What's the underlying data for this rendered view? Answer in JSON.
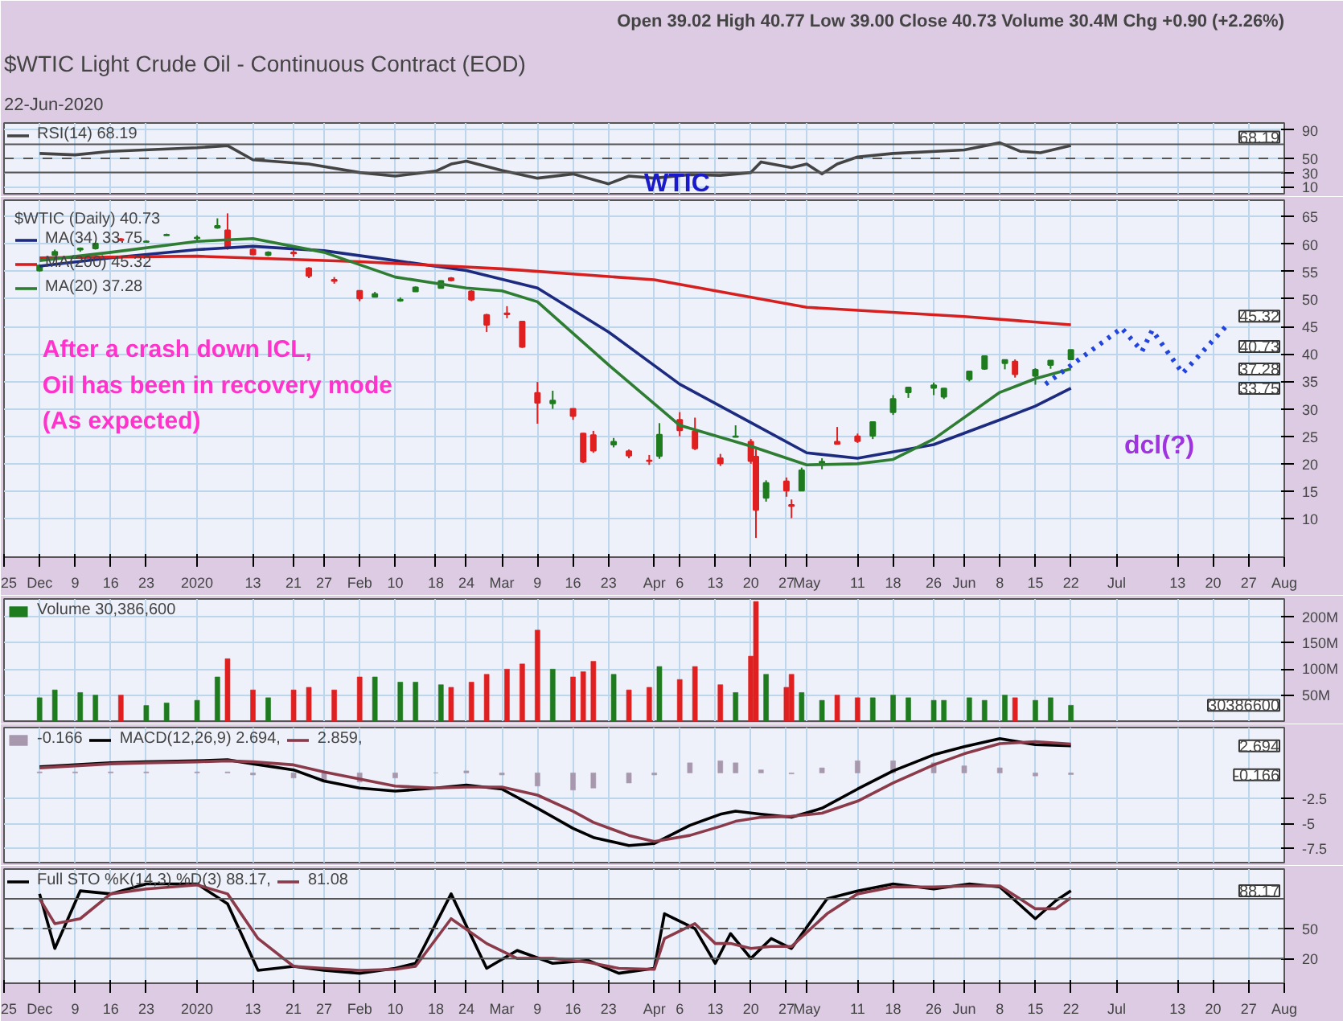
{
  "chart_data": [
    {
      "type": "line",
      "title": "$WTIC Light Crude Oil - Continuous Contract (EOD)",
      "subtitle": "22-Jun-2020",
      "annotations": [
        "Open 39.02 High 40.77 Low 39.00 Close 40.73 Volume 30.4M Chg +0.90 (+2.26%)",
        "WTIC",
        "68.19"
      ],
      "xlim": [
        "2019-11-25",
        "2020-08-03"
      ],
      "ylim": [
        0,
        100
      ],
      "yticks": [
        10,
        30,
        50,
        90
      ],
      "tick_labels": "y",
      "grid": true,
      "legend": "top left",
      "ref_lines": [
        {
          "axis": "y",
          "value": 70
        },
        {
          "axis": "y",
          "value": 50,
          "line_style": "dashed"
        },
        {
          "axis": "y",
          "value": 30
        }
      ],
      "series": [
        {
          "name": "RSI(14) 68.19",
          "color": "#444444",
          "x": [
            "2019-12-02",
            "2019-12-09",
            "2019-12-16",
            "2020-01-02",
            "2020-01-08",
            "2020-01-13",
            "2020-01-24",
            "2020-02-03",
            "2020-02-10",
            "2020-02-18",
            "2020-02-21",
            "2020-02-24",
            "2020-03-02",
            "2020-03-09",
            "2020-03-16",
            "2020-03-23",
            "2020-03-27",
            "2020-04-01",
            "2020-04-08",
            "2020-04-14",
            "2020-04-20",
            "2020-04-22",
            "2020-04-28",
            "2020-05-01",
            "2020-05-04",
            "2020-05-07",
            "2020-05-11",
            "2020-05-18",
            "2020-06-01",
            "2020-06-08",
            "2020-06-12",
            "2020-06-16",
            "2020-06-22"
          ],
          "values": [
            57,
            55,
            60,
            65,
            68,
            48,
            42,
            30,
            25,
            32,
            42,
            46,
            33,
            22,
            28,
            14,
            25,
            22,
            27,
            26,
            30,
            45,
            37,
            42,
            28,
            42,
            52,
            57,
            62,
            72,
            60,
            58,
            68.19
          ]
        }
      ]
    },
    {
      "type": "candlestick",
      "legend_title": "$WTIC (Daily) 40.73",
      "legend": "top left",
      "grid": true,
      "annotations": [
        "After a crash down ICL,",
        "Oil has been in recovery mode",
        "(As expected)",
        "dcl(?)",
        "45.32",
        "40.73",
        "37.28",
        "33.75"
      ],
      "xlim": [
        "2019-11-25",
        "2020-08-03"
      ],
      "xticks": [
        {
          "value": "2019-11-25",
          "label": "25"
        },
        {
          "value": "2019-12-02",
          "label": "Dec"
        },
        {
          "value": "2019-12-09",
          "label": "9"
        },
        {
          "value": "2019-12-16",
          "label": "16"
        },
        {
          "value": "2019-12-23",
          "label": "23"
        },
        {
          "value": "2020-01-02",
          "label": "2020"
        },
        {
          "value": "2020-01-13",
          "label": "13"
        },
        {
          "value": "2020-01-21",
          "label": "21"
        },
        {
          "value": "2020-01-27",
          "label": "27"
        },
        {
          "value": "2020-02-03",
          "label": "Feb"
        },
        {
          "value": "2020-02-10",
          "label": "10"
        },
        {
          "value": "2020-02-18",
          "label": "18"
        },
        {
          "value": "2020-02-24",
          "label": "24"
        },
        {
          "value": "2020-03-02",
          "label": "Mar"
        },
        {
          "value": "2020-03-09",
          "label": "9"
        },
        {
          "value": "2020-03-16",
          "label": "16"
        },
        {
          "value": "2020-03-23",
          "label": "23"
        },
        {
          "value": "2020-04-01",
          "label": "Apr"
        },
        {
          "value": "2020-04-06",
          "label": "6"
        },
        {
          "value": "2020-04-13",
          "label": "13"
        },
        {
          "value": "2020-04-20",
          "label": "20"
        },
        {
          "value": "2020-04-27",
          "label": "27"
        },
        {
          "value": "2020-05-01",
          "label": "May"
        },
        {
          "value": "2020-05-11",
          "label": "11"
        },
        {
          "value": "2020-05-18",
          "label": "18"
        },
        {
          "value": "2020-05-26",
          "label": "26"
        },
        {
          "value": "2020-06-01",
          "label": "Jun"
        },
        {
          "value": "2020-06-08",
          "label": "8"
        },
        {
          "value": "2020-06-15",
          "label": "15"
        },
        {
          "value": "2020-06-22",
          "label": "22"
        },
        {
          "value": "2020-07-01",
          "label": "Jul"
        },
        {
          "value": "2020-07-13",
          "label": "13"
        },
        {
          "value": "2020-07-20",
          "label": "20"
        },
        {
          "value": "2020-07-27",
          "label": "27"
        },
        {
          "value": "2020-08-03",
          "label": "Aug"
        }
      ],
      "ylim": [
        3,
        68
      ],
      "yticks": [
        10,
        15,
        20,
        25,
        30,
        35,
        40,
        45,
        50,
        55,
        60,
        65
      ],
      "x": [
        "2019-12-02",
        "2019-12-05",
        "2019-12-10",
        "2019-12-13",
        "2019-12-18",
        "2019-12-23",
        "2019-12-27",
        "2020-01-02",
        "2020-01-06",
        "2020-01-08",
        "2020-01-13",
        "2020-01-16",
        "2020-01-21",
        "2020-01-24",
        "2020-01-29",
        "2020-02-03",
        "2020-02-06",
        "2020-02-11",
        "2020-02-14",
        "2020-02-19",
        "2020-02-21",
        "2020-02-25",
        "2020-02-28",
        "2020-03-03",
        "2020-03-06",
        "2020-03-09",
        "2020-03-12",
        "2020-03-16",
        "2020-03-18",
        "2020-03-20",
        "2020-03-24",
        "2020-03-27",
        "2020-03-31",
        "2020-04-02",
        "2020-04-06",
        "2020-04-09",
        "2020-04-14",
        "2020-04-17",
        "2020-04-20",
        "2020-04-21",
        "2020-04-23",
        "2020-04-27",
        "2020-04-28",
        "2020-04-30",
        "2020-05-04",
        "2020-05-07",
        "2020-05-11",
        "2020-05-14",
        "2020-05-18",
        "2020-05-21",
        "2020-05-26",
        "2020-05-28",
        "2020-06-02",
        "2020-06-05",
        "2020-06-09",
        "2020-06-11",
        "2020-06-15",
        "2020-06-18",
        "2020-06-22"
      ],
      "ohlc": [
        [
          55.2,
          56.3,
          55.0,
          56.1
        ],
        [
          58.0,
          59.0,
          58.0,
          58.6
        ],
        [
          59.0,
          59.4,
          58.6,
          59.2
        ],
        [
          59.2,
          60.2,
          59.0,
          60.1
        ],
        [
          60.9,
          61.1,
          60.5,
          60.7
        ],
        [
          60.4,
          60.7,
          60.3,
          60.5
        ],
        [
          61.6,
          61.9,
          61.5,
          61.7
        ],
        [
          61.1,
          61.6,
          60.6,
          61.2
        ],
        [
          63.0,
          64.7,
          62.8,
          63.3
        ],
        [
          62.5,
          65.6,
          59.0,
          59.6
        ],
        [
          59.0,
          59.2,
          58.0,
          58.1
        ],
        [
          58.0,
          58.7,
          57.8,
          58.5
        ],
        [
          58.5,
          59.7,
          57.7,
          58.3
        ],
        [
          55.6,
          55.8,
          53.8,
          54.2
        ],
        [
          53.5,
          54.0,
          52.8,
          53.3
        ],
        [
          51.5,
          51.6,
          49.6,
          50.1
        ],
        [
          50.4,
          51.3,
          50.3,
          50.9
        ],
        [
          49.7,
          50.3,
          49.5,
          49.9
        ],
        [
          51.4,
          52.3,
          51.3,
          52.1
        ],
        [
          52.0,
          53.4,
          52.0,
          53.3
        ],
        [
          53.8,
          54.0,
          53.2,
          53.4
        ],
        [
          51.4,
          51.6,
          49.6,
          49.9
        ],
        [
          47.1,
          47.3,
          44.0,
          45.3
        ],
        [
          47.4,
          48.7,
          46.5,
          47.2
        ],
        [
          45.9,
          46.0,
          41.1,
          41.3
        ],
        [
          32.9,
          34.9,
          27.3,
          31.1
        ],
        [
          31.0,
          33.3,
          30.0,
          31.5
        ],
        [
          30.0,
          30.0,
          28.0,
          28.7
        ],
        [
          25.5,
          25.6,
          20.1,
          20.4
        ],
        [
          25.2,
          26.0,
          22.0,
          22.4
        ],
        [
          23.5,
          24.7,
          23.0,
          24.0
        ],
        [
          22.3,
          22.6,
          21.0,
          21.5
        ],
        [
          20.6,
          21.6,
          19.8,
          20.5
        ],
        [
          21.4,
          27.4,
          20.9,
          25.3
        ],
        [
          28.0,
          29.4,
          25.0,
          26.1
        ],
        [
          25.9,
          28.4,
          22.5,
          22.8
        ],
        [
          21.0,
          21.8,
          19.6,
          20.1
        ],
        [
          24.9,
          27.0,
          24.8,
          25.0
        ],
        [
          24.0,
          24.5,
          20.0,
          20.5
        ],
        [
          21.3,
          22.6,
          6.5,
          11.6
        ],
        [
          13.8,
          17.0,
          13.1,
          16.5
        ],
        [
          16.8,
          17.5,
          14.0,
          15.1
        ],
        [
          12.5,
          13.5,
          10.1,
          12.3
        ],
        [
          15.1,
          19.3,
          15.0,
          18.8
        ],
        [
          19.8,
          21.0,
          19.0,
          20.4
        ],
        [
          24.0,
          26.7,
          23.5,
          23.6
        ],
        [
          25.0,
          25.5,
          23.8,
          24.1
        ],
        [
          25.1,
          27.6,
          24.5,
          27.6
        ],
        [
          29.4,
          32.5,
          28.9,
          31.8
        ],
        [
          33.0,
          34.0,
          32.0,
          33.9
        ],
        [
          33.8,
          34.8,
          32.5,
          34.3
        ],
        [
          32.2,
          33.8,
          31.8,
          33.7
        ],
        [
          35.4,
          36.9,
          35.0,
          36.8
        ],
        [
          37.3,
          39.6,
          37.1,
          39.6
        ],
        [
          38.3,
          38.9,
          37.2,
          38.9
        ],
        [
          38.6,
          39.0,
          35.7,
          36.3
        ],
        [
          36.0,
          37.4,
          34.4,
          37.1
        ],
        [
          38.0,
          38.8,
          37.3,
          38.8
        ],
        [
          39.02,
          40.77,
          39.0,
          40.73
        ]
      ],
      "colors": [
        "#1e7b1e",
        "#1e7b1e",
        "#1e7b1e",
        "#1e7b1e",
        "#e02020",
        "#1e7b1e",
        "#1e7b1e",
        "#1e7b1e",
        "#1e7b1e",
        "#e02020",
        "#e02020",
        "#1e7b1e",
        "#e02020",
        "#e02020",
        "#e02020",
        "#e02020",
        "#1e7b1e",
        "#1e7b1e",
        "#1e7b1e",
        "#1e7b1e",
        "#e02020",
        "#e02020",
        "#e02020",
        "#e02020",
        "#e02020",
        "#e02020",
        "#1e7b1e",
        "#e02020",
        "#e02020",
        "#e02020",
        "#1e7b1e",
        "#e02020",
        "#e02020",
        "#1e7b1e",
        "#e02020",
        "#e02020",
        "#e02020",
        "#1e7b1e",
        "#e02020",
        "#e02020",
        "#1e7b1e",
        "#e02020",
        "#e02020",
        "#1e7b1e",
        "#1e7b1e",
        "#e02020",
        "#e02020",
        "#1e7b1e",
        "#1e7b1e",
        "#1e7b1e",
        "#1e7b1e",
        "#1e7b1e",
        "#1e7b1e",
        "#1e7b1e",
        "#1e7b1e",
        "#e02020",
        "#1e7b1e",
        "#1e7b1e",
        "#1e7b1e"
      ],
      "series": [
        {
          "name": "MA(34) 33.75",
          "type": "line",
          "color": "#1c2a80",
          "x": [
            "2019-12-02",
            "2019-12-16",
            "2020-01-02",
            "2020-01-13",
            "2020-01-27",
            "2020-02-10",
            "2020-02-24",
            "2020-03-09",
            "2020-03-23",
            "2020-04-06",
            "2020-04-20",
            "2020-05-01",
            "2020-05-11",
            "2020-05-26",
            "2020-06-08",
            "2020-06-15",
            "2020-06-22"
          ],
          "values": [
            56.0,
            57.5,
            59.0,
            59.6,
            58.8,
            57.0,
            55.2,
            52.0,
            44.0,
            34.5,
            27.5,
            22.0,
            21.0,
            23.5,
            28.0,
            30.5,
            33.75
          ]
        },
        {
          "name": "MA(200) 45.32",
          "type": "line",
          "color": "#d62020",
          "x": [
            "2019-12-02",
            "2020-01-02",
            "2020-02-03",
            "2020-03-02",
            "2020-04-01",
            "2020-05-01",
            "2020-06-01",
            "2020-06-22"
          ],
          "values": [
            57.5,
            57.8,
            56.8,
            55.5,
            53.5,
            48.5,
            46.8,
            45.32
          ]
        },
        {
          "name": "MA(20) 37.28",
          "type": "line",
          "color": "#2e7d32",
          "x": [
            "2019-12-02",
            "2019-12-16",
            "2020-01-02",
            "2020-01-13",
            "2020-01-27",
            "2020-02-10",
            "2020-02-24",
            "2020-03-02",
            "2020-03-09",
            "2020-03-23",
            "2020-04-06",
            "2020-04-20",
            "2020-05-01",
            "2020-05-11",
            "2020-05-18",
            "2020-05-26",
            "2020-06-08",
            "2020-06-15",
            "2020-06-22"
          ],
          "values": [
            57.0,
            58.5,
            60.5,
            61.0,
            58.5,
            54.0,
            52.0,
            51.5,
            49.5,
            38.0,
            27.0,
            23.2,
            19.8,
            20.0,
            20.8,
            24.5,
            33.0,
            35.5,
            37.28
          ]
        },
        {
          "type": "line",
          "color": "#2244dd",
          "line_style": "dotted",
          "x": [
            "2020-06-17",
            "2020-07-02",
            "2020-07-06",
            "2020-07-08",
            "2020-07-14",
            "2020-07-23"
          ],
          "values": [
            34.5,
            44.7,
            40.5,
            44.3,
            36.5,
            45.5
          ]
        }
      ]
    },
    {
      "type": "bar",
      "legend": "top left",
      "grid": true,
      "tick_labels": "y",
      "annotations": [
        "30386600"
      ],
      "xlim": [
        "2019-11-25",
        "2020-08-03"
      ],
      "ylim": [
        0,
        235000000
      ],
      "yticks": [
        {
          "value": 50000000,
          "label": "50M"
        },
        {
          "value": 100000000,
          "label": "100M"
        },
        {
          "value": 150000000,
          "label": "150M"
        },
        {
          "value": 200000000,
          "label": "200M"
        }
      ],
      "series": [
        {
          "name": "Volume 30,386,600",
          "color": "#1e7b1e",
          "x": [
            "2019-12-02",
            "2019-12-05",
            "2019-12-10",
            "2019-12-13",
            "2019-12-18",
            "2019-12-23",
            "2019-12-27",
            "2020-01-02",
            "2020-01-06",
            "2020-01-08",
            "2020-01-13",
            "2020-01-16",
            "2020-01-21",
            "2020-01-24",
            "2020-01-29",
            "2020-02-03",
            "2020-02-06",
            "2020-02-11",
            "2020-02-14",
            "2020-02-19",
            "2020-02-21",
            "2020-02-25",
            "2020-02-28",
            "2020-03-03",
            "2020-03-06",
            "2020-03-09",
            "2020-03-12",
            "2020-03-16",
            "2020-03-18",
            "2020-03-20",
            "2020-03-24",
            "2020-03-27",
            "2020-03-31",
            "2020-04-02",
            "2020-04-06",
            "2020-04-09",
            "2020-04-14",
            "2020-04-17",
            "2020-04-20",
            "2020-04-21",
            "2020-04-23",
            "2020-04-27",
            "2020-04-28",
            "2020-04-30",
            "2020-05-04",
            "2020-05-07",
            "2020-05-11",
            "2020-05-14",
            "2020-05-18",
            "2020-05-21",
            "2020-05-26",
            "2020-05-28",
            "2020-06-02",
            "2020-06-05",
            "2020-06-09",
            "2020-06-11",
            "2020-06-15",
            "2020-06-18",
            "2020-06-22"
          ],
          "colors": [
            "#1e7b1e",
            "#1e7b1e",
            "#1e7b1e",
            "#1e7b1e",
            "#e02020",
            "#1e7b1e",
            "#1e7b1e",
            "#1e7b1e",
            "#1e7b1e",
            "#e02020",
            "#e02020",
            "#1e7b1e",
            "#e02020",
            "#e02020",
            "#e02020",
            "#e02020",
            "#1e7b1e",
            "#1e7b1e",
            "#1e7b1e",
            "#1e7b1e",
            "#e02020",
            "#e02020",
            "#e02020",
            "#e02020",
            "#e02020",
            "#e02020",
            "#1e7b1e",
            "#e02020",
            "#e02020",
            "#e02020",
            "#1e7b1e",
            "#e02020",
            "#e02020",
            "#1e7b1e",
            "#e02020",
            "#e02020",
            "#e02020",
            "#1e7b1e",
            "#e02020",
            "#e02020",
            "#1e7b1e",
            "#e02020",
            "#e02020",
            "#1e7b1e",
            "#1e7b1e",
            "#e02020",
            "#e02020",
            "#1e7b1e",
            "#1e7b1e",
            "#1e7b1e",
            "#1e7b1e",
            "#1e7b1e",
            "#1e7b1e",
            "#1e7b1e",
            "#1e7b1e",
            "#e02020",
            "#1e7b1e",
            "#1e7b1e",
            "#1e7b1e"
          ],
          "values": [
            45000000,
            60000000,
            55000000,
            50000000,
            50000000,
            30000000,
            35000000,
            40000000,
            85000000,
            120000000,
            60000000,
            45000000,
            60000000,
            65000000,
            60000000,
            85000000,
            85000000,
            75000000,
            75000000,
            70000000,
            65000000,
            75000000,
            90000000,
            100000000,
            110000000,
            175000000,
            100000000,
            85000000,
            95000000,
            115000000,
            90000000,
            60000000,
            65000000,
            105000000,
            80000000,
            105000000,
            70000000,
            55000000,
            125000000,
            230000000,
            90000000,
            65000000,
            90000000,
            55000000,
            40000000,
            50000000,
            45000000,
            45000000,
            50000000,
            45000000,
            40000000,
            40000000,
            45000000,
            40000000,
            50000000,
            45000000,
            40000000,
            45000000,
            30386600
          ]
        }
      ]
    },
    {
      "type": "line",
      "legend": "top left",
      "grid": true,
      "tick_labels": "y",
      "annotations": [
        "2.694",
        "-0.166"
      ],
      "xlim": [
        "2019-11-25",
        "2020-08-03"
      ],
      "ylim": [
        -8.9,
        4.5
      ],
      "yticks": [
        -7.5,
        -5,
        -2.5
      ],
      "series": [
        {
          "name": "-0.166",
          "type": "bar",
          "color": "#a898ae",
          "x": [
            "2019-12-02",
            "2019-12-09",
            "2019-12-16",
            "2019-12-23",
            "2020-01-02",
            "2020-01-08",
            "2020-01-13",
            "2020-01-21",
            "2020-01-27",
            "2020-02-03",
            "2020-02-10",
            "2020-02-18",
            "2020-02-24",
            "2020-03-02",
            "2020-03-09",
            "2020-03-16",
            "2020-03-20",
            "2020-03-27",
            "2020-04-01",
            "2020-04-08",
            "2020-04-14",
            "2020-04-17",
            "2020-04-22",
            "2020-04-28",
            "2020-05-04",
            "2020-05-11",
            "2020-05-18",
            "2020-05-26",
            "2020-06-01",
            "2020-06-08",
            "2020-06-15",
            "2020-06-22"
          ],
          "values": [
            0.1,
            0.1,
            0.1,
            0.1,
            0.1,
            0.1,
            -0.2,
            -0.5,
            -0.9,
            -0.9,
            -0.5,
            0,
            0.2,
            -0.2,
            -1.3,
            -1.7,
            -1.5,
            -1.0,
            -0.2,
            1.0,
            1.2,
            1.0,
            0.3,
            -0.1,
            0.5,
            1.2,
            1.2,
            1.0,
            0.7,
            0.5,
            -0.3,
            -0.166
          ]
        },
        {
          "name": "MACD(12,26,9) 2.694,",
          "color": "#000000",
          "x": [
            "2019-12-02",
            "2019-12-09",
            "2019-12-16",
            "2019-12-23",
            "2020-01-02",
            "2020-01-08",
            "2020-01-13",
            "2020-01-21",
            "2020-01-27",
            "2020-02-03",
            "2020-02-10",
            "2020-02-18",
            "2020-02-24",
            "2020-03-02",
            "2020-03-09",
            "2020-03-16",
            "2020-03-20",
            "2020-03-27",
            "2020-04-01",
            "2020-04-08",
            "2020-04-14",
            "2020-04-17",
            "2020-04-22",
            "2020-04-28",
            "2020-05-04",
            "2020-05-11",
            "2020-05-18",
            "2020-05-26",
            "2020-06-01",
            "2020-06-08",
            "2020-06-15",
            "2020-06-22"
          ],
          "values": [
            0.6,
            0.8,
            1.0,
            1.1,
            1.2,
            1.3,
            0.9,
            0.3,
            -0.8,
            -1.5,
            -1.8,
            -1.5,
            -1.2,
            -1.6,
            -3.5,
            -5.5,
            -6.4,
            -7.2,
            -7.0,
            -5.2,
            -4.1,
            -3.8,
            -4.1,
            -4.4,
            -3.5,
            -1.6,
            0.2,
            1.8,
            2.6,
            3.4,
            2.8,
            2.694
          ]
        },
        {
          "name": "2.859,",
          "color": "#8b3a4a",
          "x": [
            "2019-12-02",
            "2019-12-09",
            "2019-12-16",
            "2019-12-23",
            "2020-01-02",
            "2020-01-08",
            "2020-01-13",
            "2020-01-21",
            "2020-01-27",
            "2020-02-03",
            "2020-02-10",
            "2020-02-18",
            "2020-02-24",
            "2020-03-02",
            "2020-03-09",
            "2020-03-16",
            "2020-03-20",
            "2020-03-27",
            "2020-04-01",
            "2020-04-08",
            "2020-04-14",
            "2020-04-17",
            "2020-04-22",
            "2020-04-28",
            "2020-05-04",
            "2020-05-11",
            "2020-05-18",
            "2020-05-26",
            "2020-06-01",
            "2020-06-08",
            "2020-06-15",
            "2020-06-22"
          ],
          "values": [
            0.5,
            0.7,
            0.9,
            1.0,
            1.1,
            1.2,
            1.1,
            0.8,
            0.1,
            -0.6,
            -1.3,
            -1.5,
            -1.4,
            -1.4,
            -2.2,
            -3.8,
            -4.9,
            -6.2,
            -6.8,
            -6.2,
            -5.3,
            -4.8,
            -4.4,
            -4.3,
            -4.0,
            -2.8,
            -1.0,
            0.8,
            1.9,
            2.9,
            3.1,
            2.859
          ]
        }
      ]
    },
    {
      "type": "line",
      "legend": "top left",
      "grid": true,
      "annotations": [
        "88.17"
      ],
      "xlim": [
        "2019-11-25",
        "2020-08-03"
      ],
      "xticks": [
        {
          "value": "2019-11-25",
          "label": "25"
        },
        {
          "value": "2019-12-02",
          "label": "Dec"
        },
        {
          "value": "2019-12-09",
          "label": "9"
        },
        {
          "value": "2019-12-16",
          "label": "16"
        },
        {
          "value": "2019-12-23",
          "label": "23"
        },
        {
          "value": "2020-01-02",
          "label": "2020"
        },
        {
          "value": "2020-01-13",
          "label": "13"
        },
        {
          "value": "2020-01-21",
          "label": "21"
        },
        {
          "value": "2020-01-27",
          "label": "27"
        },
        {
          "value": "2020-02-03",
          "label": "Feb"
        },
        {
          "value": "2020-02-10",
          "label": "10"
        },
        {
          "value": "2020-02-18",
          "label": "18"
        },
        {
          "value": "2020-02-24",
          "label": "24"
        },
        {
          "value": "2020-03-02",
          "label": "Mar"
        },
        {
          "value": "2020-03-09",
          "label": "9"
        },
        {
          "value": "2020-03-16",
          "label": "16"
        },
        {
          "value": "2020-03-23",
          "label": "23"
        },
        {
          "value": "2020-04-01",
          "label": "Apr"
        },
        {
          "value": "2020-04-06",
          "label": "6"
        },
        {
          "value": "2020-04-13",
          "label": "13"
        },
        {
          "value": "2020-04-20",
          "label": "20"
        },
        {
          "value": "2020-04-27",
          "label": "27"
        },
        {
          "value": "2020-05-01",
          "label": "May"
        },
        {
          "value": "2020-05-11",
          "label": "11"
        },
        {
          "value": "2020-05-18",
          "label": "18"
        },
        {
          "value": "2020-05-26",
          "label": "26"
        },
        {
          "value": "2020-06-01",
          "label": "Jun"
        },
        {
          "value": "2020-06-08",
          "label": "8"
        },
        {
          "value": "2020-06-15",
          "label": "15"
        },
        {
          "value": "2020-06-22",
          "label": "22"
        },
        {
          "value": "2020-07-01",
          "label": "Jul"
        },
        {
          "value": "2020-07-13",
          "label": "13"
        },
        {
          "value": "2020-07-20",
          "label": "20"
        },
        {
          "value": "2020-07-27",
          "label": "27"
        },
        {
          "value": "2020-08-03",
          "label": "Aug"
        }
      ],
      "ylim": [
        -5,
        110
      ],
      "yticks": [
        20,
        50
      ],
      "ref_lines": [
        {
          "axis": "y",
          "value": 80
        },
        {
          "axis": "y",
          "value": 50,
          "line_style": "dashed"
        },
        {
          "axis": "y",
          "value": 20
        }
      ],
      "series": [
        {
          "name": "Full STO %K(14,3) %D(3) 88.17,",
          "color": "#000000",
          "x": [
            "2019-12-02",
            "2019-12-05",
            "2019-12-10",
            "2019-12-16",
            "2019-12-23",
            "2020-01-02",
            "2020-01-08",
            "2020-01-14",
            "2020-01-21",
            "2020-01-27",
            "2020-02-03",
            "2020-02-10",
            "2020-02-14",
            "2020-02-21",
            "2020-02-28",
            "2020-03-05",
            "2020-03-12",
            "2020-03-19",
            "2020-03-25",
            "2020-04-01",
            "2020-04-03",
            "2020-04-09",
            "2020-04-13",
            "2020-04-16",
            "2020-04-20",
            "2020-04-24",
            "2020-04-28",
            "2020-05-05",
            "2020-05-11",
            "2020-05-18",
            "2020-05-26",
            "2020-06-02",
            "2020-06-08",
            "2020-06-15",
            "2020-06-19",
            "2020-06-22"
          ],
          "values": [
            85,
            30,
            88,
            85,
            95,
            95,
            75,
            8,
            12,
            8,
            5,
            10,
            15,
            85,
            10,
            28,
            15,
            18,
            5,
            10,
            65,
            50,
            15,
            45,
            20,
            40,
            30,
            80,
            88,
            95,
            90,
            95,
            92,
            60,
            78,
            88.17
          ]
        },
        {
          "name": "81.08",
          "color": "#8b3a4a",
          "x": [
            "2019-12-02",
            "2019-12-05",
            "2019-12-10",
            "2019-12-16",
            "2019-12-23",
            "2020-01-02",
            "2020-01-08",
            "2020-01-14",
            "2020-01-21",
            "2020-01-27",
            "2020-02-03",
            "2020-02-10",
            "2020-02-14",
            "2020-02-21",
            "2020-02-28",
            "2020-03-05",
            "2020-03-12",
            "2020-03-19",
            "2020-03-25",
            "2020-04-01",
            "2020-04-03",
            "2020-04-09",
            "2020-04-13",
            "2020-04-16",
            "2020-04-20",
            "2020-04-24",
            "2020-04-28",
            "2020-05-05",
            "2020-05-11",
            "2020-05-18",
            "2020-05-26",
            "2020-06-02",
            "2020-06-08",
            "2020-06-15",
            "2020-06-19",
            "2020-06-22"
          ],
          "values": [
            80,
            55,
            60,
            85,
            90,
            94,
            85,
            40,
            12,
            10,
            8,
            9,
            12,
            60,
            35,
            20,
            20,
            16,
            10,
            9,
            40,
            55,
            35,
            35,
            30,
            32,
            32,
            65,
            85,
            92,
            92,
            93,
            93,
            70,
            70,
            81.08
          ]
        }
      ]
    }
  ]
}
